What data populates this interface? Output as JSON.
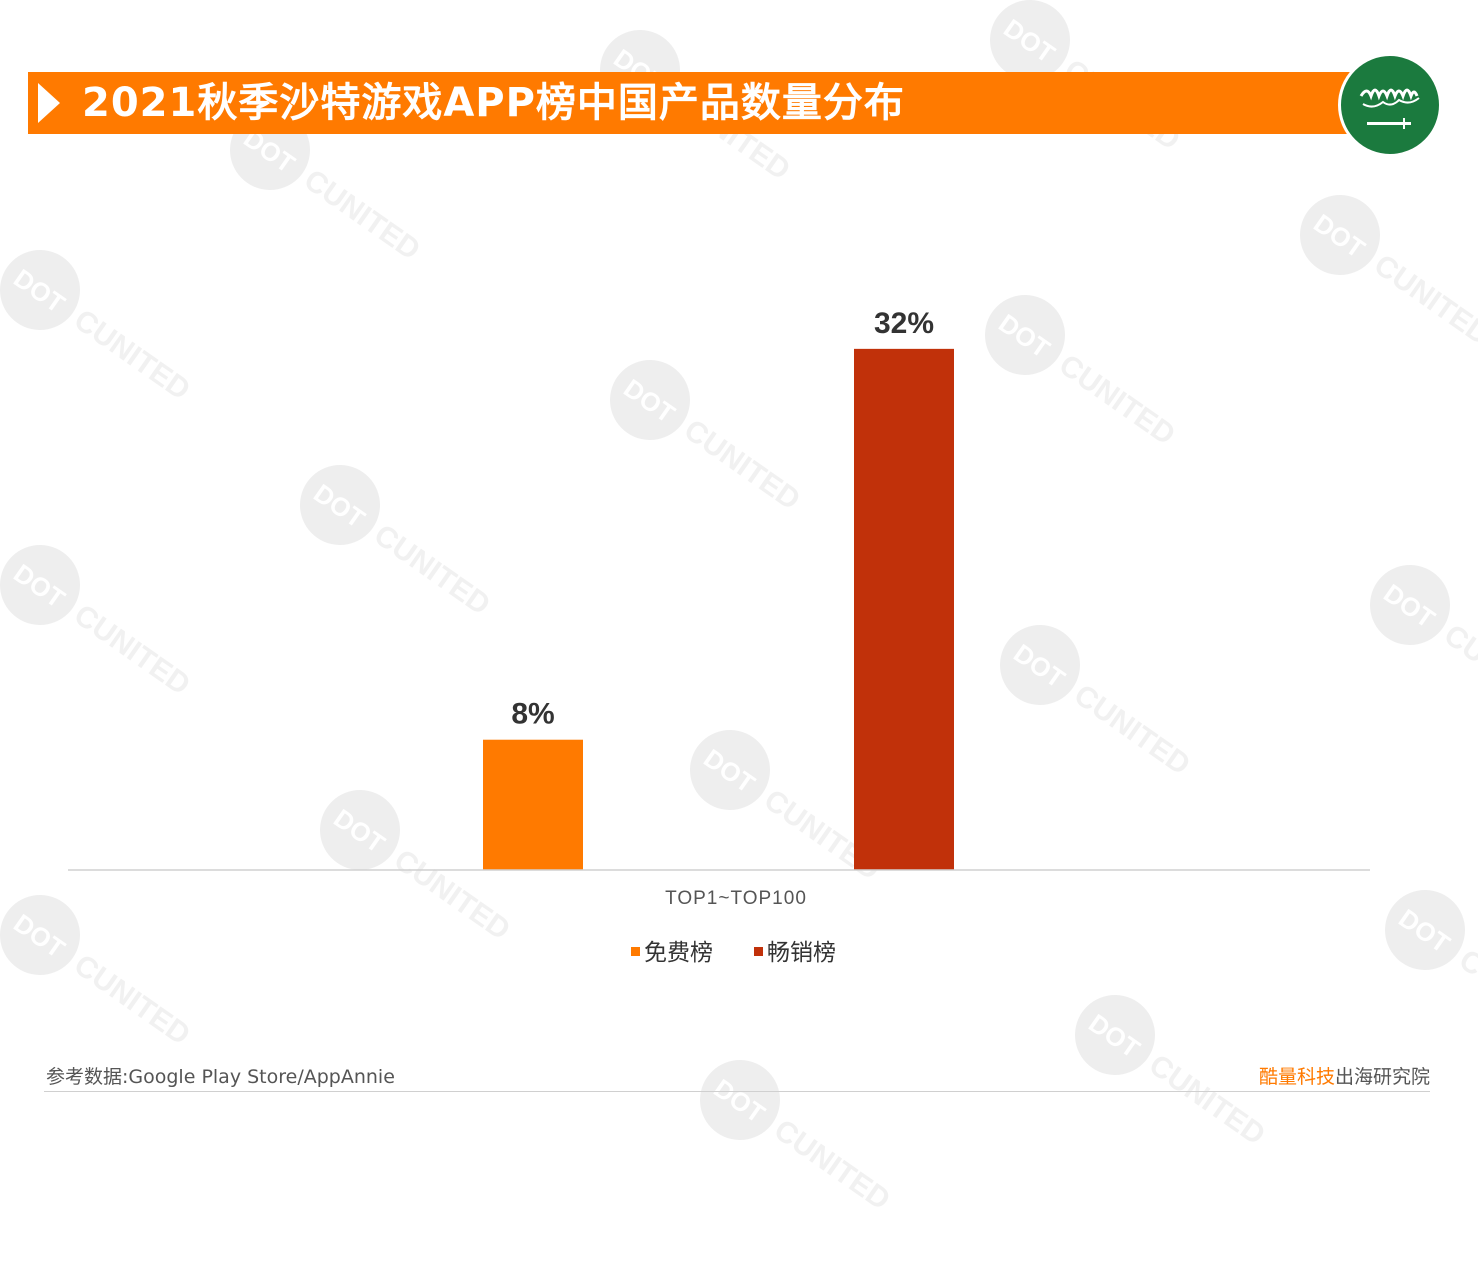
{
  "title": "2021秋季沙特游戏APP榜中国产品数量分布",
  "flag_icon": "saudi-arabia-flag-icon",
  "watermark_text": "DOTC UNITED",
  "chart_data": {
    "type": "bar",
    "title": "",
    "categories": [
      "TOP1~TOP100"
    ],
    "series": [
      {
        "name": "免费榜",
        "values": [
          8
        ],
        "color": "#ff7a00",
        "label": "8%"
      },
      {
        "name": "畅销榜",
        "values": [
          32
        ],
        "color": "#c1310a",
        "label": "32%"
      }
    ],
    "unit": "%",
    "ylim": [
      0,
      35
    ],
    "grid": false,
    "legend_position": "bottom"
  },
  "legend": {
    "free": "免费榜",
    "grossing": "畅销榜"
  },
  "footer": {
    "source": "参考数据:Google Play Store/AppAnnie",
    "brand_highlight": "酷量科技",
    "brand_rest": "出海研究院"
  }
}
